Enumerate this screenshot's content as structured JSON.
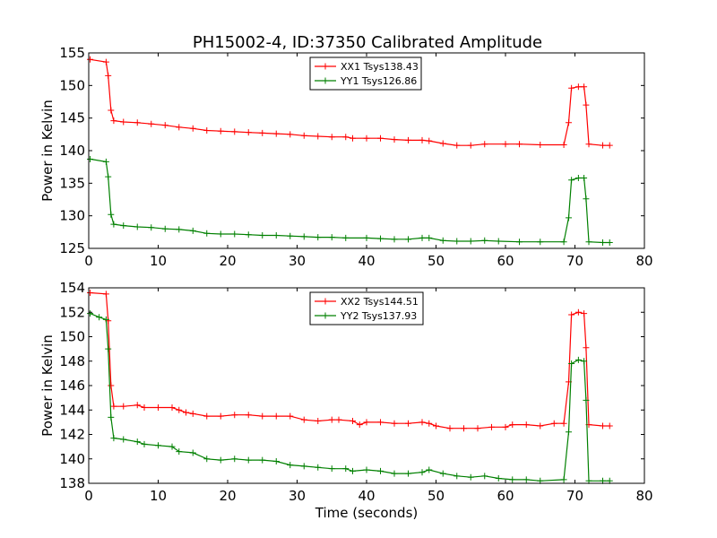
{
  "figure": {
    "title": "PH15002-4, ID:37350 Calibrated Amplitude"
  },
  "chart_data": [
    {
      "type": "line",
      "title": "PH15002-4, ID:37350 Calibrated Amplitude",
      "xlabel": "",
      "ylabel": "Power in Kelvin",
      "xlim": [
        0,
        80
      ],
      "ylim": [
        125,
        155
      ],
      "x_ticks": [
        0,
        10,
        20,
        30,
        40,
        50,
        60,
        70,
        80
      ],
      "y_ticks": [
        125,
        130,
        135,
        140,
        145,
        150,
        155
      ],
      "grid": false,
      "legend_position": "top-center",
      "marker": "+",
      "series": [
        {
          "name": "XX1 Tsys138.43",
          "color": "#ff0000",
          "points": [
            [
              0.2,
              154
            ],
            [
              2.5,
              153.6
            ],
            [
              2.8,
              151.5
            ],
            [
              3.2,
              146.2
            ],
            [
              3.6,
              144.6
            ],
            [
              5,
              144.4
            ],
            [
              7,
              144.3
            ],
            [
              9,
              144.1
            ],
            [
              11,
              143.9
            ],
            [
              13,
              143.6
            ],
            [
              15,
              143.4
            ],
            [
              17,
              143.1
            ],
            [
              19,
              143
            ],
            [
              21,
              142.9
            ],
            [
              23,
              142.8
            ],
            [
              25,
              142.7
            ],
            [
              27,
              142.6
            ],
            [
              29,
              142.5
            ],
            [
              31,
              142.3
            ],
            [
              33,
              142.2
            ],
            [
              35,
              142.1
            ],
            [
              37,
              142.1
            ],
            [
              38,
              141.9
            ],
            [
              40,
              141.9
            ],
            [
              42,
              141.9
            ],
            [
              44,
              141.7
            ],
            [
              46,
              141.6
            ],
            [
              48,
              141.6
            ],
            [
              49,
              141.5
            ],
            [
              51,
              141.1
            ],
            [
              53,
              140.8
            ],
            [
              55,
              140.8
            ],
            [
              57,
              141
            ],
            [
              60,
              141
            ],
            [
              62,
              141
            ],
            [
              65,
              140.9
            ],
            [
              68.4,
              140.9
            ],
            [
              69.1,
              144.3
            ],
            [
              69.5,
              149.6
            ],
            [
              70.5,
              149.8
            ],
            [
              71.3,
              149.8
            ],
            [
              71.6,
              147
            ],
            [
              72,
              141
            ],
            [
              74,
              140.8
            ],
            [
              75,
              140.8
            ]
          ]
        },
        {
          "name": "YY1 Tsys126.86",
          "color": "#008000",
          "points": [
            [
              0.2,
              138.7
            ],
            [
              2.5,
              138.3
            ],
            [
              2.8,
              136
            ],
            [
              3.2,
              130.2
            ],
            [
              3.6,
              128.7
            ],
            [
              5,
              128.5
            ],
            [
              7,
              128.3
            ],
            [
              9,
              128.2
            ],
            [
              11,
              128
            ],
            [
              13,
              127.9
            ],
            [
              15,
              127.7
            ],
            [
              17,
              127.3
            ],
            [
              19,
              127.2
            ],
            [
              21,
              127.2
            ],
            [
              23,
              127.1
            ],
            [
              25,
              127
            ],
            [
              27,
              127
            ],
            [
              29,
              126.9
            ],
            [
              31,
              126.8
            ],
            [
              33,
              126.7
            ],
            [
              35,
              126.7
            ],
            [
              37,
              126.6
            ],
            [
              40,
              126.6
            ],
            [
              42,
              126.5
            ],
            [
              44,
              126.4
            ],
            [
              46,
              126.4
            ],
            [
              48,
              126.6
            ],
            [
              49,
              126.6
            ],
            [
              51,
              126.2
            ],
            [
              53,
              126.1
            ],
            [
              55,
              126.1
            ],
            [
              57,
              126.2
            ],
            [
              59,
              126.1
            ],
            [
              62,
              126
            ],
            [
              65,
              126
            ],
            [
              68.4,
              126
            ],
            [
              69.1,
              129.7
            ],
            [
              69.5,
              135.5
            ],
            [
              70.5,
              135.8
            ],
            [
              71.3,
              135.8
            ],
            [
              71.6,
              132.6
            ],
            [
              72,
              126
            ],
            [
              74,
              125.9
            ],
            [
              75,
              125.9
            ]
          ]
        }
      ]
    },
    {
      "type": "line",
      "title": "",
      "xlabel": "Time (seconds)",
      "ylabel": "Power in Kelvin",
      "xlim": [
        0,
        80
      ],
      "ylim": [
        138,
        154
      ],
      "x_ticks": [
        0,
        10,
        20,
        30,
        40,
        50,
        60,
        70,
        80
      ],
      "y_ticks": [
        138,
        140,
        142,
        144,
        146,
        148,
        150,
        152,
        154
      ],
      "grid": false,
      "legend_position": "top-center",
      "marker": "+",
      "series": [
        {
          "name": "XX2 Tsys144.51",
          "color": "#ff0000",
          "points": [
            [
              0.2,
              153.6
            ],
            [
              2.5,
              153.5
            ],
            [
              2.8,
              151.3
            ],
            [
              3.2,
              146
            ],
            [
              3.6,
              144.3
            ],
            [
              5,
              144.3
            ],
            [
              7,
              144.4
            ],
            [
              8,
              144.2
            ],
            [
              10,
              144.2
            ],
            [
              12,
              144.2
            ],
            [
              13,
              144
            ],
            [
              14,
              143.8
            ],
            [
              15,
              143.7
            ],
            [
              17,
              143.5
            ],
            [
              19,
              143.5
            ],
            [
              21,
              143.6
            ],
            [
              23,
              143.6
            ],
            [
              25,
              143.5
            ],
            [
              27,
              143.5
            ],
            [
              29,
              143.5
            ],
            [
              31,
              143.2
            ],
            [
              33,
              143.1
            ],
            [
              35,
              143.2
            ],
            [
              36,
              143.2
            ],
            [
              38,
              143.1
            ],
            [
              39,
              142.8
            ],
            [
              40,
              143
            ],
            [
              42,
              143
            ],
            [
              44,
              142.9
            ],
            [
              46,
              142.9
            ],
            [
              48,
              143
            ],
            [
              49,
              142.9
            ],
            [
              50,
              142.7
            ],
            [
              52,
              142.5
            ],
            [
              54,
              142.5
            ],
            [
              56,
              142.5
            ],
            [
              58,
              142.6
            ],
            [
              60,
              142.6
            ],
            [
              61,
              142.8
            ],
            [
              63,
              142.8
            ],
            [
              65,
              142.7
            ],
            [
              67,
              142.9
            ],
            [
              68.4,
              142.9
            ],
            [
              69.1,
              146.3
            ],
            [
              69.5,
              151.8
            ],
            [
              70.5,
              152
            ],
            [
              71.3,
              151.9
            ],
            [
              71.6,
              149.1
            ],
            [
              72,
              142.8
            ],
            [
              74,
              142.7
            ],
            [
              75,
              142.7
            ]
          ]
        },
        {
          "name": "YY2 Tsys137.93",
          "color": "#008000",
          "points": [
            [
              0.2,
              151.9
            ],
            [
              1.5,
              151.6
            ],
            [
              2.5,
              151.4
            ],
            [
              2.8,
              149
            ],
            [
              3.2,
              143.4
            ],
            [
              3.6,
              141.7
            ],
            [
              5,
              141.6
            ],
            [
              7,
              141.4
            ],
            [
              8,
              141.2
            ],
            [
              10,
              141.1
            ],
            [
              12,
              141
            ],
            [
              13,
              140.6
            ],
            [
              15,
              140.5
            ],
            [
              17,
              140
            ],
            [
              19,
              139.9
            ],
            [
              21,
              140
            ],
            [
              23,
              139.9
            ],
            [
              25,
              139.9
            ],
            [
              27,
              139.8
            ],
            [
              29,
              139.5
            ],
            [
              31,
              139.4
            ],
            [
              33,
              139.3
            ],
            [
              35,
              139.2
            ],
            [
              37,
              139.2
            ],
            [
              38,
              139
            ],
            [
              40,
              139.1
            ],
            [
              42,
              139
            ],
            [
              44,
              138.8
            ],
            [
              46,
              138.8
            ],
            [
              48,
              138.9
            ],
            [
              49,
              139.1
            ],
            [
              51,
              138.8
            ],
            [
              53,
              138.6
            ],
            [
              55,
              138.5
            ],
            [
              57,
              138.6
            ],
            [
              59,
              138.4
            ],
            [
              61,
              138.3
            ],
            [
              63,
              138.3
            ],
            [
              65,
              138.2
            ],
            [
              68.4,
              138.3
            ],
            [
              69.1,
              142.2
            ],
            [
              69.5,
              147.8
            ],
            [
              70.5,
              148.1
            ],
            [
              71.3,
              148
            ],
            [
              71.6,
              144.8
            ],
            [
              72,
              138.2
            ],
            [
              74,
              138.2
            ],
            [
              75,
              138.2
            ]
          ]
        }
      ]
    }
  ]
}
